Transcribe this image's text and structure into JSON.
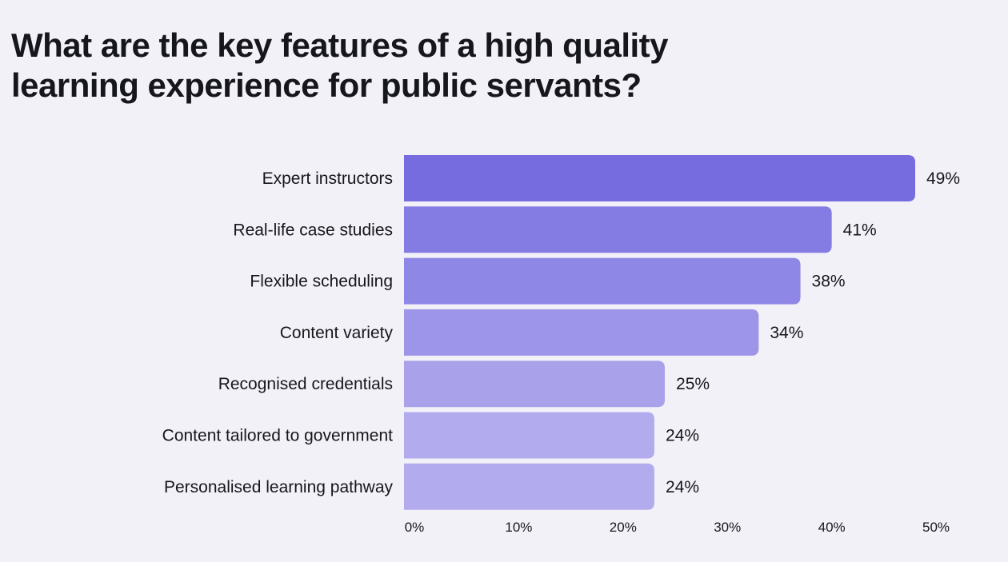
{
  "chart_data": {
    "type": "bar",
    "orientation": "horizontal",
    "title_lines": [
      "What are the key features of a high quality",
      "learning experience for public servants?"
    ],
    "categories": [
      "Expert instructors",
      "Real-life case studies",
      "Flexible scheduling",
      "Content variety",
      "Recognised credentials",
      "Content tailored to government",
      "Personalised learning pathway"
    ],
    "values": [
      49,
      41,
      38,
      34,
      25,
      24,
      24
    ],
    "value_labels": [
      "49%",
      "41%",
      "38%",
      "34%",
      "25%",
      "24%",
      "24%"
    ],
    "xlim": [
      0,
      50
    ],
    "ticks": [
      0,
      10,
      20,
      30,
      40,
      50
    ],
    "tick_labels": [
      "0%",
      "10%",
      "20%",
      "30%",
      "40%",
      "50%"
    ],
    "bar_colors": [
      "#766ce0",
      "#847be3",
      "#8f87e5",
      "#9d96e8",
      "#a9a2eb",
      "#b2acee",
      "#b2acee"
    ],
    "grid": false,
    "legend": "none"
  }
}
